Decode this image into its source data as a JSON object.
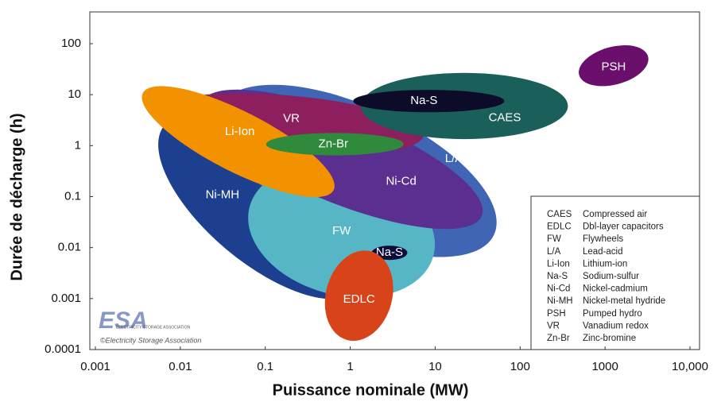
{
  "chart_data": {
    "type": "ellipse-region",
    "xlabel": "Puissance nominale (MW)",
    "ylabel": "Durée de décharge  (h)",
    "log_x": true,
    "log_y": true,
    "xlim": [
      0.001,
      10000
    ],
    "ylim": [
      0.0001,
      100
    ],
    "xticks": [
      0.001,
      0.01,
      0.1,
      1,
      10,
      100,
      1000,
      {
        "value": 10000,
        "label": "10,000"
      }
    ],
    "yticks": [
      0.0001,
      0.001,
      0.01,
      0.1,
      1,
      10,
      100
    ],
    "regions": [
      {
        "name": "Ni-MH",
        "color": "#1d3f8f",
        "x": 0.092,
        "y": 0.063,
        "rx": 1.5,
        "ry": 1.09,
        "angle": 40
      },
      {
        "name": "L/A",
        "color": "#4065b5",
        "x": 1.2,
        "y": 0.32,
        "rx": 1.78,
        "ry": 1.25,
        "angle": 25
      },
      {
        "name": "FW",
        "color": "#56b6c6",
        "x": 0.79,
        "y": 0.021,
        "rx": 1.12,
        "ry": 1.25,
        "angle": 15
      },
      {
        "name": "Ni-Cd",
        "color": "#5a2f90",
        "x": 0.79,
        "y": 0.54,
        "rx": 1.78,
        "ry": 0.86,
        "angle": 22
      },
      {
        "name": "VR",
        "color": "#8e1f5e",
        "x": 0.19,
        "y": 2.7,
        "rx": 1.59,
        "ry": 0.55,
        "angle": 5
      },
      {
        "name": "CAES",
        "color": "#1b5f5a",
        "x": 22,
        "y": 6,
        "rx": 1.22,
        "ry": 0.65,
        "angle": 0
      },
      {
        "name": "Na-S",
        "color": "#0c0b2a",
        "x": 8.4,
        "y": 7.5,
        "rx": 0.89,
        "ry": 0.22,
        "angle": 0
      },
      {
        "name": "Li-Ion",
        "color": "#f39200",
        "x": 0.048,
        "y": 1.2,
        "rx": 1.26,
        "ry": 0.59,
        "angle": 27
      },
      {
        "name": "Zn-Br",
        "color": "#2f8a3b",
        "x": 0.66,
        "y": 1.07,
        "rx": 0.81,
        "ry": 0.22,
        "angle": 0
      },
      {
        "name": "Na-S",
        "color": "#0c0b3a",
        "x": 2.9,
        "y": 0.0079,
        "rx": 0.21,
        "ry": 0.14,
        "angle": 0
      },
      {
        "name": "EDLC",
        "color": "#d8431a",
        "x": 1.27,
        "y": 0.00114,
        "rx": 0.39,
        "ry": 0.9,
        "angle": 15
      },
      {
        "name": "PSH",
        "color": "#6b0f6d",
        "x": 1260,
        "y": 37,
        "rx": 0.42,
        "ry": 0.37,
        "angle": -15
      }
    ],
    "legend": [
      [
        "CAES",
        "Compressed air"
      ],
      [
        "EDLC",
        "Dbl-layer capacitors"
      ],
      [
        "FW",
        "Flywheels"
      ],
      [
        "L/A",
        "Lead-acid"
      ],
      [
        "Li-Ion",
        "Lithium-ion"
      ],
      [
        "Na-S",
        "Sodium-sulfur"
      ],
      [
        "Ni-Cd",
        "Nickel-cadmium"
      ],
      [
        "Ni-MH",
        "Nickel-metal hydride"
      ],
      [
        "PSH",
        "Pumped hydro"
      ],
      [
        "VR",
        "Vanadium redox"
      ],
      [
        "Zn-Br",
        "Zinc-bromine"
      ]
    ],
    "logo": {
      "mark": "ESA",
      "name": "ELECTRICITY STORAGE ASSOCIATION",
      "credit": "©Electricity Storage Association"
    }
  }
}
